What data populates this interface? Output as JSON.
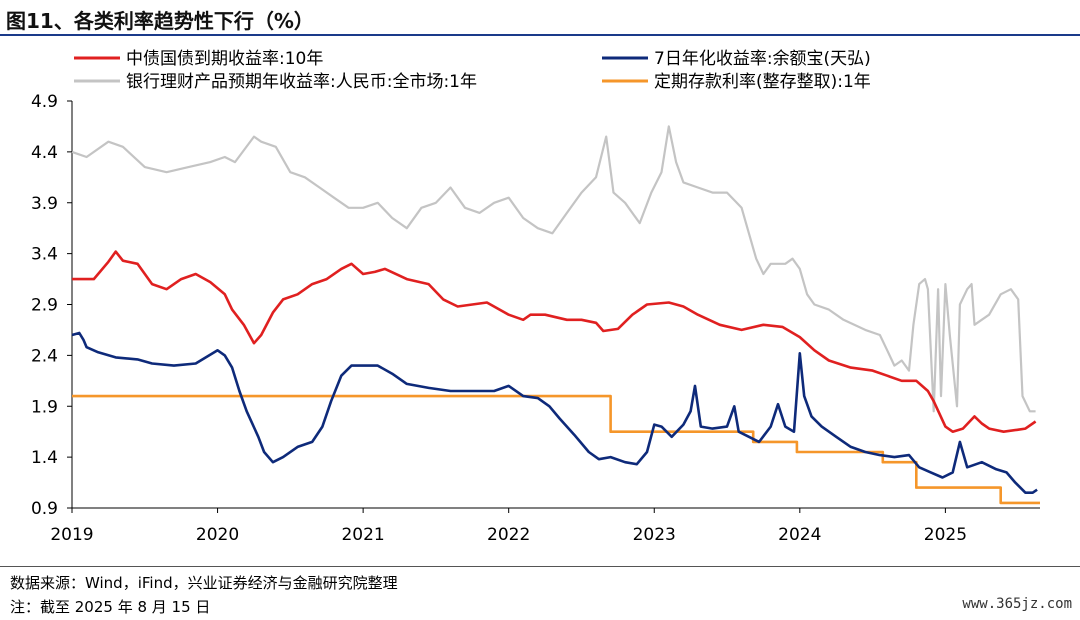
{
  "header": {
    "title": "图11、各类利率趋势性下行（%）"
  },
  "footer": {
    "source": "数据来源：Wind，iFind，兴业证券经济与金融研究院整理",
    "note": "注：截至 2025 年 8 月 15 日",
    "watermark": "www.365jz.com"
  },
  "colors": {
    "frame": "#1a3a8a"
  },
  "chart_data": {
    "type": "line",
    "title": "各类利率趋势性下行（%）",
    "xlabel": "",
    "ylabel": "",
    "xlim": [
      2019.0,
      2025.65
    ],
    "ylim": [
      0.9,
      4.9
    ],
    "yticks": [
      0.9,
      1.4,
      1.9,
      2.4,
      2.9,
      3.4,
      3.9,
      4.4,
      4.9
    ],
    "ytick_labels": [
      "0.9",
      "1.4",
      "1.9",
      "2.4",
      "2.9",
      "3.4",
      "3.9",
      "4.4",
      "4.9"
    ],
    "xticks": [
      2019,
      2020,
      2021,
      2022,
      2023,
      2024,
      2025
    ],
    "xtick_labels": [
      "2019",
      "2020",
      "2021",
      "2022",
      "2023",
      "2024",
      "2025"
    ],
    "grid": false,
    "legend_position": "top",
    "series": [
      {
        "name": "中债国债到期收益率:10年",
        "color": "#e02020",
        "points": [
          [
            2019.0,
            3.15
          ],
          [
            2019.15,
            3.15
          ],
          [
            2019.25,
            3.32
          ],
          [
            2019.3,
            3.42
          ],
          [
            2019.35,
            3.33
          ],
          [
            2019.45,
            3.3
          ],
          [
            2019.55,
            3.1
          ],
          [
            2019.65,
            3.05
          ],
          [
            2019.75,
            3.15
          ],
          [
            2019.85,
            3.2
          ],
          [
            2019.95,
            3.12
          ],
          [
            2020.05,
            3.0
          ],
          [
            2020.1,
            2.85
          ],
          [
            2020.18,
            2.7
          ],
          [
            2020.25,
            2.52
          ],
          [
            2020.3,
            2.6
          ],
          [
            2020.38,
            2.82
          ],
          [
            2020.45,
            2.95
          ],
          [
            2020.55,
            3.0
          ],
          [
            2020.65,
            3.1
          ],
          [
            2020.75,
            3.15
          ],
          [
            2020.85,
            3.25
          ],
          [
            2020.92,
            3.3
          ],
          [
            2021.0,
            3.2
          ],
          [
            2021.08,
            3.22
          ],
          [
            2021.15,
            3.25
          ],
          [
            2021.3,
            3.15
          ],
          [
            2021.45,
            3.1
          ],
          [
            2021.55,
            2.95
          ],
          [
            2021.65,
            2.88
          ],
          [
            2021.75,
            2.9
          ],
          [
            2021.85,
            2.92
          ],
          [
            2022.0,
            2.8
          ],
          [
            2022.1,
            2.75
          ],
          [
            2022.15,
            2.8
          ],
          [
            2022.25,
            2.8
          ],
          [
            2022.4,
            2.75
          ],
          [
            2022.5,
            2.75
          ],
          [
            2022.6,
            2.72
          ],
          [
            2022.65,
            2.64
          ],
          [
            2022.75,
            2.66
          ],
          [
            2022.85,
            2.8
          ],
          [
            2022.95,
            2.9
          ],
          [
            2023.1,
            2.92
          ],
          [
            2023.2,
            2.88
          ],
          [
            2023.3,
            2.8
          ],
          [
            2023.45,
            2.7
          ],
          [
            2023.6,
            2.65
          ],
          [
            2023.75,
            2.7
          ],
          [
            2023.88,
            2.68
          ],
          [
            2024.0,
            2.58
          ],
          [
            2024.1,
            2.45
          ],
          [
            2024.2,
            2.35
          ],
          [
            2024.35,
            2.28
          ],
          [
            2024.5,
            2.25
          ],
          [
            2024.6,
            2.2
          ],
          [
            2024.7,
            2.15
          ],
          [
            2024.8,
            2.15
          ],
          [
            2024.88,
            2.05
          ],
          [
            2024.92,
            1.95
          ],
          [
            2025.0,
            1.7
          ],
          [
            2025.05,
            1.65
          ],
          [
            2025.12,
            1.68
          ],
          [
            2025.2,
            1.8
          ],
          [
            2025.25,
            1.73
          ],
          [
            2025.3,
            1.68
          ],
          [
            2025.4,
            1.65
          ],
          [
            2025.5,
            1.67
          ],
          [
            2025.55,
            1.68
          ],
          [
            2025.62,
            1.75
          ]
        ]
      },
      {
        "name": "7日年化收益率:余额宝(天弘)",
        "color": "#0e2a7a",
        "points": [
          [
            2019.0,
            2.6
          ],
          [
            2019.05,
            2.62
          ],
          [
            2019.08,
            2.55
          ],
          [
            2019.1,
            2.48
          ],
          [
            2019.18,
            2.43
          ],
          [
            2019.3,
            2.38
          ],
          [
            2019.45,
            2.36
          ],
          [
            2019.55,
            2.32
          ],
          [
            2019.7,
            2.3
          ],
          [
            2019.85,
            2.32
          ],
          [
            2020.0,
            2.45
          ],
          [
            2020.05,
            2.4
          ],
          [
            2020.1,
            2.28
          ],
          [
            2020.15,
            2.05
          ],
          [
            2020.2,
            1.85
          ],
          [
            2020.28,
            1.6
          ],
          [
            2020.32,
            1.45
          ],
          [
            2020.38,
            1.35
          ],
          [
            2020.45,
            1.4
          ],
          [
            2020.55,
            1.5
          ],
          [
            2020.65,
            1.55
          ],
          [
            2020.72,
            1.7
          ],
          [
            2020.78,
            1.95
          ],
          [
            2020.85,
            2.2
          ],
          [
            2020.92,
            2.3
          ],
          [
            2021.0,
            2.3
          ],
          [
            2021.1,
            2.3
          ],
          [
            2021.2,
            2.22
          ],
          [
            2021.3,
            2.12
          ],
          [
            2021.45,
            2.08
          ],
          [
            2021.6,
            2.05
          ],
          [
            2021.75,
            2.05
          ],
          [
            2021.9,
            2.05
          ],
          [
            2022.0,
            2.1
          ],
          [
            2022.1,
            2.0
          ],
          [
            2022.2,
            1.98
          ],
          [
            2022.28,
            1.9
          ],
          [
            2022.35,
            1.78
          ],
          [
            2022.45,
            1.62
          ],
          [
            2022.55,
            1.45
          ],
          [
            2022.62,
            1.38
          ],
          [
            2022.7,
            1.4
          ],
          [
            2022.8,
            1.35
          ],
          [
            2022.88,
            1.33
          ],
          [
            2022.95,
            1.45
          ],
          [
            2023.0,
            1.72
          ],
          [
            2023.05,
            1.7
          ],
          [
            2023.12,
            1.6
          ],
          [
            2023.2,
            1.72
          ],
          [
            2023.25,
            1.85
          ],
          [
            2023.28,
            2.1
          ],
          [
            2023.32,
            1.7
          ],
          [
            2023.4,
            1.68
          ],
          [
            2023.5,
            1.7
          ],
          [
            2023.55,
            1.9
          ],
          [
            2023.58,
            1.65
          ],
          [
            2023.65,
            1.6
          ],
          [
            2023.72,
            1.55
          ],
          [
            2023.8,
            1.7
          ],
          [
            2023.85,
            1.92
          ],
          [
            2023.9,
            1.7
          ],
          [
            2023.96,
            1.65
          ],
          [
            2024.0,
            2.42
          ],
          [
            2024.03,
            2.0
          ],
          [
            2024.08,
            1.8
          ],
          [
            2024.15,
            1.7
          ],
          [
            2024.25,
            1.6
          ],
          [
            2024.35,
            1.5
          ],
          [
            2024.45,
            1.45
          ],
          [
            2024.55,
            1.42
          ],
          [
            2024.65,
            1.4
          ],
          [
            2024.75,
            1.42
          ],
          [
            2024.82,
            1.3
          ],
          [
            2024.9,
            1.25
          ],
          [
            2024.98,
            1.2
          ],
          [
            2025.05,
            1.25
          ],
          [
            2025.1,
            1.55
          ],
          [
            2025.15,
            1.3
          ],
          [
            2025.25,
            1.35
          ],
          [
            2025.35,
            1.28
          ],
          [
            2025.42,
            1.25
          ],
          [
            2025.48,
            1.15
          ],
          [
            2025.55,
            1.05
          ],
          [
            2025.6,
            1.05
          ],
          [
            2025.63,
            1.08
          ]
        ]
      },
      {
        "name": "银行理财产品预期年收益率:人民币:全市场:1年",
        "color": "#c4c4c4",
        "points": [
          [
            2019.0,
            4.4
          ],
          [
            2019.1,
            4.35
          ],
          [
            2019.25,
            4.5
          ],
          [
            2019.35,
            4.45
          ],
          [
            2019.5,
            4.25
          ],
          [
            2019.65,
            4.2
          ],
          [
            2019.8,
            4.25
          ],
          [
            2019.95,
            4.3
          ],
          [
            2020.05,
            4.35
          ],
          [
            2020.12,
            4.3
          ],
          [
            2020.25,
            4.55
          ],
          [
            2020.3,
            4.5
          ],
          [
            2020.4,
            4.45
          ],
          [
            2020.5,
            4.2
          ],
          [
            2020.6,
            4.15
          ],
          [
            2020.7,
            4.05
          ],
          [
            2020.8,
            3.95
          ],
          [
            2020.9,
            3.85
          ],
          [
            2021.0,
            3.85
          ],
          [
            2021.1,
            3.9
          ],
          [
            2021.2,
            3.75
          ],
          [
            2021.3,
            3.65
          ],
          [
            2021.4,
            3.85
          ],
          [
            2021.5,
            3.9
          ],
          [
            2021.6,
            4.05
          ],
          [
            2021.7,
            3.85
          ],
          [
            2021.8,
            3.8
          ],
          [
            2021.9,
            3.9
          ],
          [
            2022.0,
            3.95
          ],
          [
            2022.1,
            3.75
          ],
          [
            2022.2,
            3.65
          ],
          [
            2022.3,
            3.6
          ],
          [
            2022.4,
            3.8
          ],
          [
            2022.5,
            4.0
          ],
          [
            2022.6,
            4.15
          ],
          [
            2022.67,
            4.55
          ],
          [
            2022.72,
            4.0
          ],
          [
            2022.8,
            3.9
          ],
          [
            2022.9,
            3.7
          ],
          [
            2022.98,
            4.0
          ],
          [
            2023.05,
            4.2
          ],
          [
            2023.1,
            4.65
          ],
          [
            2023.15,
            4.3
          ],
          [
            2023.2,
            4.1
          ],
          [
            2023.3,
            4.05
          ],
          [
            2023.4,
            4.0
          ],
          [
            2023.5,
            4.0
          ],
          [
            2023.6,
            3.85
          ],
          [
            2023.65,
            3.6
          ],
          [
            2023.7,
            3.35
          ],
          [
            2023.75,
            3.2
          ],
          [
            2023.8,
            3.3
          ],
          [
            2023.9,
            3.3
          ],
          [
            2023.95,
            3.35
          ],
          [
            2024.0,
            3.25
          ],
          [
            2024.05,
            3.0
          ],
          [
            2024.1,
            2.9
          ],
          [
            2024.2,
            2.85
          ],
          [
            2024.3,
            2.75
          ],
          [
            2024.45,
            2.65
          ],
          [
            2024.55,
            2.6
          ],
          [
            2024.6,
            2.45
          ],
          [
            2024.65,
            2.3
          ],
          [
            2024.7,
            2.35
          ],
          [
            2024.75,
            2.25
          ],
          [
            2024.78,
            2.7
          ],
          [
            2024.82,
            3.1
          ],
          [
            2024.86,
            3.15
          ],
          [
            2024.88,
            3.05
          ],
          [
            2024.92,
            1.85
          ],
          [
            2024.95,
            3.05
          ],
          [
            2024.97,
            2.0
          ],
          [
            2025.0,
            3.1
          ],
          [
            2025.03,
            2.6
          ],
          [
            2025.08,
            1.9
          ],
          [
            2025.1,
            2.9
          ],
          [
            2025.15,
            3.05
          ],
          [
            2025.18,
            3.1
          ],
          [
            2025.2,
            2.7
          ],
          [
            2025.3,
            2.8
          ],
          [
            2025.38,
            3.0
          ],
          [
            2025.45,
            3.05
          ],
          [
            2025.5,
            2.95
          ],
          [
            2025.53,
            2.0
          ],
          [
            2025.58,
            1.85
          ],
          [
            2025.62,
            1.85
          ]
        ]
      },
      {
        "name": "定期存款利率(整存整取):1年",
        "color": "#f5962a",
        "points": [
          [
            2019.0,
            2.0
          ],
          [
            2022.7,
            2.0
          ],
          [
            2022.7,
            1.65
          ],
          [
            2023.68,
            1.65
          ],
          [
            2023.68,
            1.55
          ],
          [
            2023.98,
            1.55
          ],
          [
            2023.98,
            1.45
          ],
          [
            2024.57,
            1.45
          ],
          [
            2024.57,
            1.35
          ],
          [
            2024.8,
            1.35
          ],
          [
            2024.8,
            1.1
          ],
          [
            2025.38,
            1.1
          ],
          [
            2025.38,
            0.95
          ],
          [
            2025.65,
            0.95
          ]
        ]
      }
    ]
  }
}
